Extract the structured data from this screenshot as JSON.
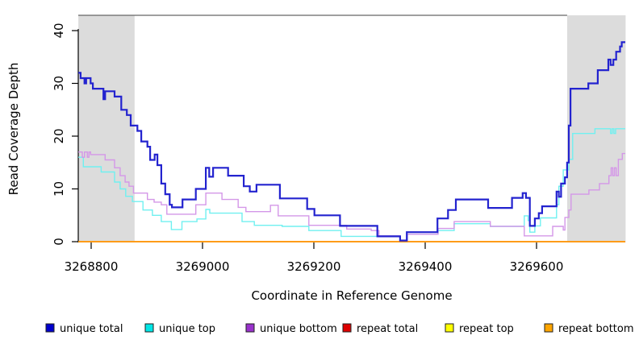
{
  "chart_data": {
    "type": "line",
    "subtype": "step",
    "title": "",
    "xlabel": "Coordinate in Reference Genome",
    "ylabel": "Read Coverage Depth",
    "x_ticks": [
      3268800,
      3269000,
      3269200,
      3269400,
      3269600
    ],
    "y_ticks": [
      0,
      10,
      20,
      30,
      40
    ],
    "xlim": [
      3268777,
      3269760
    ],
    "ylim": [
      0,
      43
    ],
    "grid": false,
    "legend_position": "bottom",
    "background": "#ffffff",
    "shaded_regions": [
      {
        "name": "left-shaded-region",
        "from": 3268777,
        "to": 3268878,
        "color": "#DCDCDC"
      },
      {
        "name": "right-shaded-region",
        "from": 3269655,
        "to": 3269760,
        "color": "#DCDCDC"
      }
    ],
    "series": [
      {
        "id": "repeat_total",
        "label": "repeat total",
        "line_color": "#DD0000",
        "width": 1.4,
        "points": [
          [
            3268777,
            0
          ]
        ]
      },
      {
        "id": "repeat_top",
        "label": "repeat top",
        "line_color": "#FFFF00",
        "width": 1.4,
        "points": [
          [
            3268777,
            0
          ]
        ]
      },
      {
        "id": "repeat_bottom",
        "label": "repeat bottom",
        "line_color": "#FF9714",
        "width": 1.8,
        "points": [
          [
            3268777,
            0
          ]
        ]
      },
      {
        "id": "unique_top",
        "label": "unique top",
        "line_color": "#70F0F0",
        "width": 1.4,
        "points": [
          [
            3268777,
            16
          ],
          [
            3268786,
            14.2
          ],
          [
            3268818,
            13.2
          ],
          [
            3268842,
            11.3
          ],
          [
            3268852,
            10
          ],
          [
            3268862,
            8.6
          ],
          [
            3268874,
            7.6
          ],
          [
            3268893,
            6
          ],
          [
            3268910,
            5
          ],
          [
            3268926,
            3.8
          ],
          [
            3268944,
            2.3
          ],
          [
            3268963,
            3.8
          ],
          [
            3268990,
            4.3
          ],
          [
            3269006,
            6.1
          ],
          [
            3269013,
            5.4
          ],
          [
            3269071,
            3.8
          ],
          [
            3269093,
            3.1
          ],
          [
            3269143,
            2.9
          ],
          [
            3269191,
            2.1
          ],
          [
            3269249,
            1
          ],
          [
            3269355,
            0.3
          ],
          [
            3269368,
            1.4
          ],
          [
            3269423,
            2.1
          ],
          [
            3269452,
            3.4
          ],
          [
            3269517,
            2.9
          ],
          [
            3269578,
            4.9
          ],
          [
            3269585,
            4
          ],
          [
            3269588,
            1.8
          ],
          [
            3269597,
            3
          ],
          [
            3269607,
            4.5
          ],
          [
            3269636,
            7
          ],
          [
            3269640,
            10.5
          ],
          [
            3269648,
            13.6
          ],
          [
            3269658,
            15.6
          ],
          [
            3269665,
            20.5
          ],
          [
            3269705,
            21.4
          ],
          [
            3269733,
            20.5
          ],
          [
            3269736,
            21.4
          ],
          [
            3269739,
            20.5
          ],
          [
            3269742,
            21.4
          ]
        ]
      },
      {
        "id": "unique_bottom",
        "label": "unique bottom",
        "line_color": "#D497E8",
        "width": 1.4,
        "points": [
          [
            3268777,
            17
          ],
          [
            3268784,
            16
          ],
          [
            3268788,
            17
          ],
          [
            3268793,
            16
          ],
          [
            3268796,
            17
          ],
          [
            3268799,
            16.5
          ],
          [
            3268825,
            15.5
          ],
          [
            3268842,
            14
          ],
          [
            3268852,
            12.5
          ],
          [
            3268861,
            11.3
          ],
          [
            3268868,
            10.5
          ],
          [
            3268876,
            9.2
          ],
          [
            3268901,
            8
          ],
          [
            3268913,
            7.5
          ],
          [
            3268926,
            7
          ],
          [
            3268936,
            5.2
          ],
          [
            3268988,
            7
          ],
          [
            3269006,
            9.2
          ],
          [
            3269035,
            8
          ],
          [
            3269064,
            6.5
          ],
          [
            3269078,
            5.7
          ],
          [
            3269122,
            6.9
          ],
          [
            3269136,
            4.9
          ],
          [
            3269191,
            3.1
          ],
          [
            3269259,
            2.4
          ],
          [
            3269303,
            2.1
          ],
          [
            3269317,
            1.1
          ],
          [
            3269355,
            0.3
          ],
          [
            3269368,
            1.4
          ],
          [
            3269423,
            2.5
          ],
          [
            3269452,
            3.8
          ],
          [
            3269517,
            2.9
          ],
          [
            3269578,
            1.1
          ],
          [
            3269629,
            2.9
          ],
          [
            3269648,
            2.2
          ],
          [
            3269651,
            4.6
          ],
          [
            3269658,
            6
          ],
          [
            3269662,
            9
          ],
          [
            3269694,
            9.8
          ],
          [
            3269713,
            11
          ],
          [
            3269730,
            12.5
          ],
          [
            3269734,
            14
          ],
          [
            3269737,
            12.5
          ],
          [
            3269740,
            14
          ],
          [
            3269743,
            12.5
          ],
          [
            3269747,
            15.6
          ],
          [
            3269754,
            16.7
          ]
        ]
      },
      {
        "id": "unique_total",
        "label": "unique total",
        "line_color": "#2323CF",
        "width": 2.2,
        "points": [
          [
            3268777,
            32
          ],
          [
            3268781,
            31
          ],
          [
            3268788,
            30
          ],
          [
            3268791,
            31
          ],
          [
            3268799,
            30
          ],
          [
            3268803,
            29
          ],
          [
            3268822,
            27
          ],
          [
            3268825,
            28.5
          ],
          [
            3268842,
            27.5
          ],
          [
            3268854,
            25
          ],
          [
            3268864,
            24
          ],
          [
            3268871,
            22
          ],
          [
            3268883,
            21
          ],
          [
            3268890,
            19
          ],
          [
            3268901,
            18
          ],
          [
            3268906,
            15.5
          ],
          [
            3268914,
            16.5
          ],
          [
            3268919,
            14.5
          ],
          [
            3268926,
            11
          ],
          [
            3268933,
            9
          ],
          [
            3268941,
            7
          ],
          [
            3268945,
            6.5
          ],
          [
            3268964,
            8
          ],
          [
            3268988,
            10
          ],
          [
            3269006,
            14
          ],
          [
            3269012,
            12.3
          ],
          [
            3269019,
            14
          ],
          [
            3269046,
            12.5
          ],
          [
            3269074,
            10.5
          ],
          [
            3269085,
            9.5
          ],
          [
            3269097,
            10.8
          ],
          [
            3269139,
            8.2
          ],
          [
            3269188,
            6.2
          ],
          [
            3269201,
            5
          ],
          [
            3269247,
            3
          ],
          [
            3269314,
            1
          ],
          [
            3269355,
            0.2
          ],
          [
            3269367,
            1.8
          ],
          [
            3269422,
            4.4
          ],
          [
            3269441,
            6
          ],
          [
            3269455,
            8
          ],
          [
            3269513,
            6.4
          ],
          [
            3269556,
            8.3
          ],
          [
            3269575,
            9.2
          ],
          [
            3269581,
            8.3
          ],
          [
            3269588,
            3
          ],
          [
            3269597,
            4.4
          ],
          [
            3269604,
            5.4
          ],
          [
            3269610,
            6.7
          ],
          [
            3269636,
            9.5
          ],
          [
            3269640,
            8.5
          ],
          [
            3269644,
            11
          ],
          [
            3269651,
            12.2
          ],
          [
            3269655,
            15
          ],
          [
            3269658,
            22
          ],
          [
            3269661,
            29
          ],
          [
            3269693,
            30
          ],
          [
            3269710,
            32.5
          ],
          [
            3269729,
            34.5
          ],
          [
            3269733,
            33.5
          ],
          [
            3269738,
            34.5
          ],
          [
            3269743,
            36
          ],
          [
            3269750,
            37
          ],
          [
            3269753,
            37.8
          ]
        ]
      }
    ]
  },
  "legend": {
    "items": [
      {
        "label": "unique total",
        "swatch_color": "#0000CC"
      },
      {
        "label": "unique top",
        "swatch_color": "#00E6E6"
      },
      {
        "label": "unique bottom",
        "swatch_color": "#9932CC"
      },
      {
        "label": "repeat total",
        "swatch_color": "#DD0000"
      },
      {
        "label": "repeat top",
        "swatch_color": "#FFFF00"
      },
      {
        "label": "repeat bottom",
        "swatch_color": "#FFA500"
      }
    ]
  }
}
